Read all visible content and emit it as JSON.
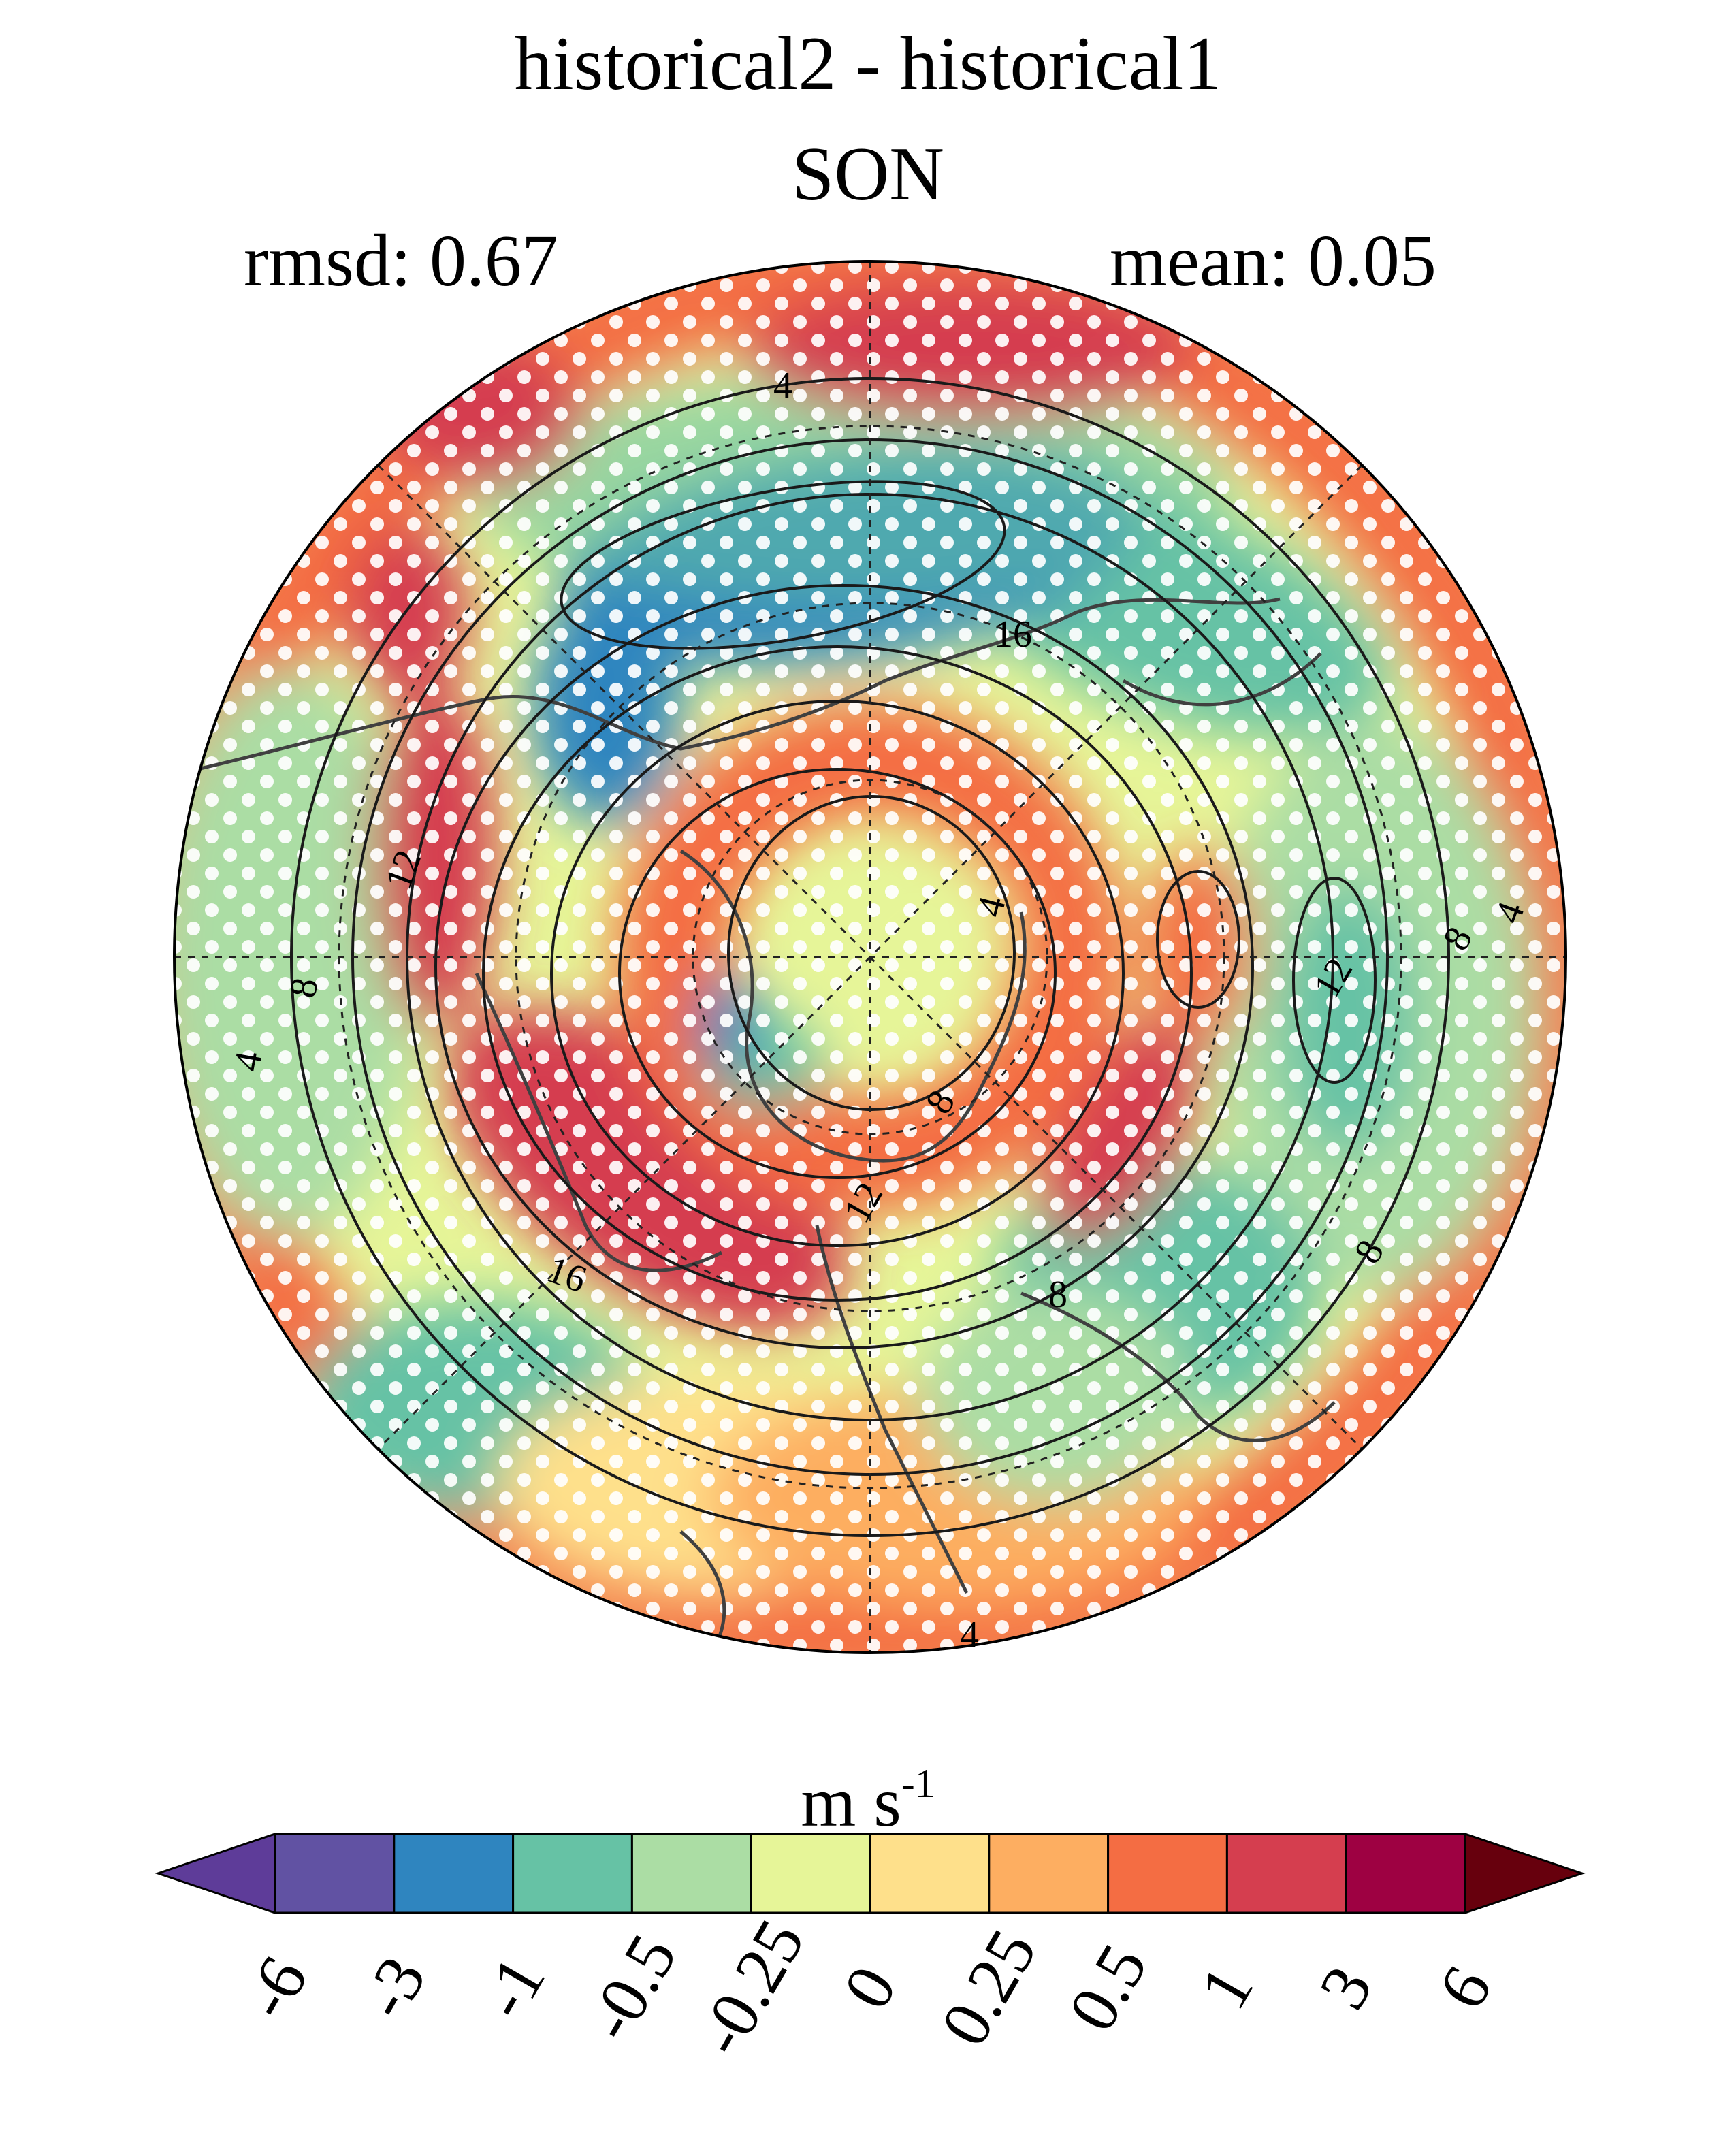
{
  "title": "historical2 - historical1",
  "season": "SON",
  "rmsd_text": "rmsd: 0.67",
  "mean_text": "mean: 0.05",
  "colorbar": {
    "unit_base": "m s",
    "unit_exp": "-1",
    "tick_labels": [
      "-6",
      "-3",
      "-1",
      "-0.5",
      "-0.25",
      "0",
      "0.25",
      "0.5",
      "1",
      "3",
      "6"
    ],
    "colors": [
      "#5e3c99",
      "#6152a3",
      "#2f85bf",
      "#66c2a5",
      "#abdda4",
      "#e6f598",
      "#fee08b",
      "#fdae61",
      "#f46d43",
      "#d53e4f",
      "#9e0142",
      "#67000d"
    ]
  },
  "contour_labels": [
    "4",
    "8",
    "12",
    "16",
    "16",
    "12",
    "8",
    "4",
    "12",
    "8",
    "4",
    "8",
    "4",
    "8",
    "8",
    "12",
    "4"
  ]
}
